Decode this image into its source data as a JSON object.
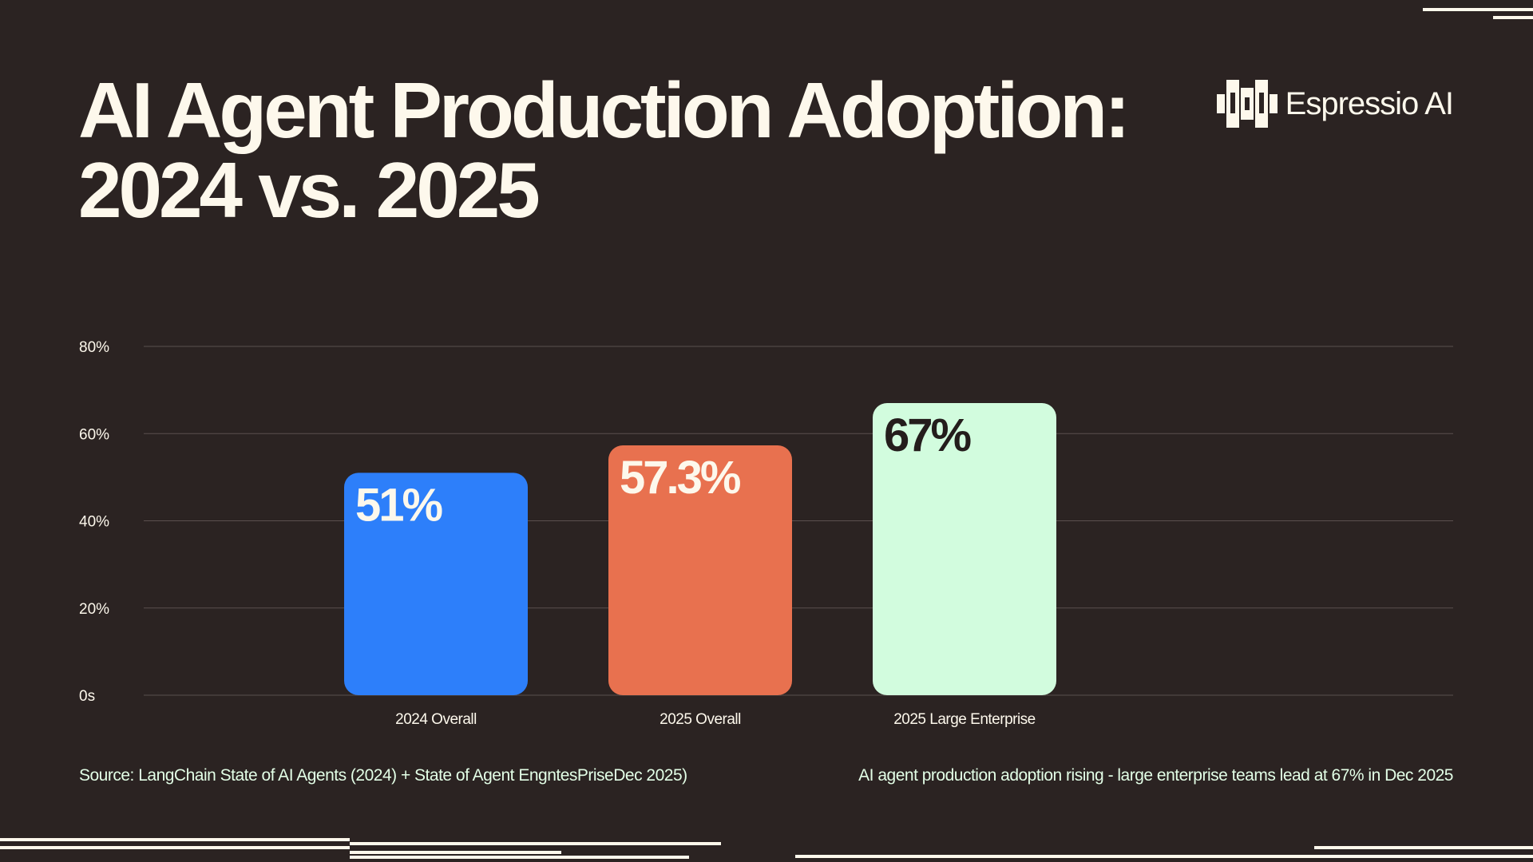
{
  "header": {
    "title_line1": "AI Agent Production Adoption:",
    "title_line2": "2024 vs. 2025",
    "brand_name": "Espressio AI",
    "brand_icon": "espressio-logo-icon"
  },
  "chart_data": {
    "type": "bar",
    "categories": [
      "2024 Overall",
      "2025 Overall",
      "2025 Large Enterprise"
    ],
    "values": [
      51,
      57.3,
      67
    ],
    "data_labels": [
      "51%",
      "57.3%",
      "67%"
    ],
    "bar_colors": [
      "#2d7ffa",
      "#e8714f",
      "#d2fcde"
    ],
    "data_label_colors": [
      "#fdf8ec",
      "#fdf8ec",
      "#241d1c"
    ],
    "ylim": [
      0,
      80
    ],
    "yticks": [
      0,
      20,
      40,
      60,
      80
    ],
    "ytick_labels": [
      "0s",
      "20%",
      "40%",
      "60%",
      "80%"
    ],
    "grid": true,
    "title": "",
    "xlabel": "",
    "ylabel": ""
  },
  "footer": {
    "source": "Source: LangChain State of AI Agents (2024) + State of Agent EngntesPriseDec 2025)",
    "note": "AI agent production adoption rising - large enterprise teams lead at 67% in Dec 2025"
  },
  "colors": {
    "background": "#2b2322",
    "text": "#fdf8ec",
    "footer_text": "#e3ffe7",
    "gridline": "#5a504e"
  }
}
